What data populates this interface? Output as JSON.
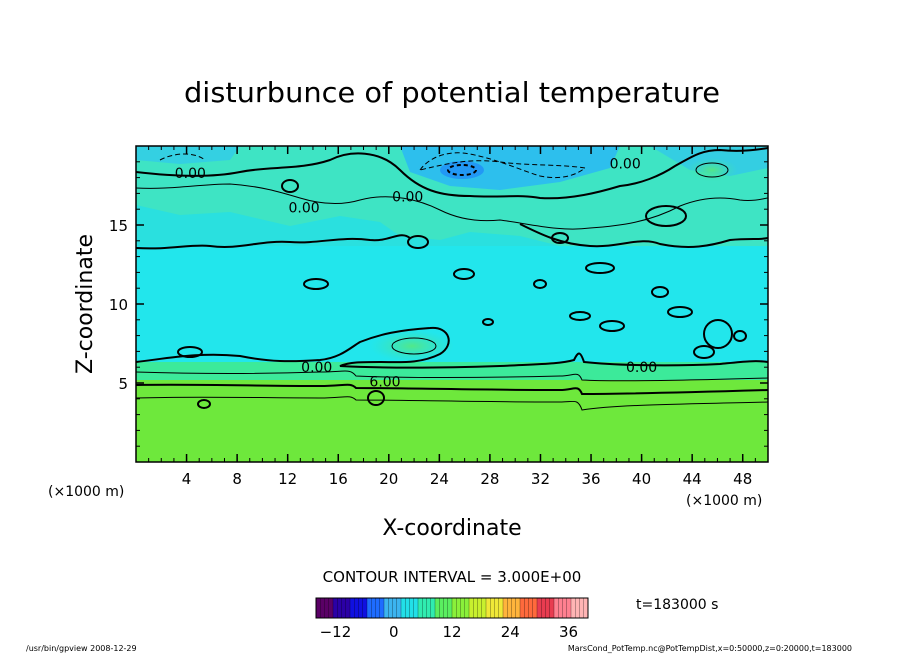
{
  "chart_data": {
    "type": "heatmap",
    "title": "disturbunce of potential temperature",
    "xlabel": "X-coordinate",
    "ylabel": "Z-coordinate",
    "x_unit_left": "(×1000 m)",
    "x_unit_right": "(×1000 m)",
    "xlim": [
      0,
      50
    ],
    "ylim": [
      0,
      20
    ],
    "x_ticks": [
      4,
      8,
      12,
      16,
      20,
      24,
      28,
      32,
      36,
      40,
      44,
      48
    ],
    "y_ticks": [
      5,
      10,
      15
    ],
    "contour_interval_text": "CONTOUR INTERVAL = 3.000E+00",
    "contour_labels": [
      {
        "text": "0.00",
        "x": 4.3,
        "z": 18.3
      },
      {
        "text": "0.00",
        "x": 13.3,
        "z": 16.1
      },
      {
        "text": "0.00",
        "x": 21.5,
        "z": 16.8
      },
      {
        "text": "0.00",
        "x": 38.7,
        "z": 18.9
      },
      {
        "text": "0.00",
        "x": 14.3,
        "z": 6.0
      },
      {
        "text": "0.00",
        "x": 40.0,
        "z": 6.0
      },
      {
        "text": "6.00",
        "x": 19.7,
        "z": 5.1
      }
    ],
    "field_description": [
      {
        "z_from": 0,
        "z_to": 4.5,
        "value": 8
      },
      {
        "z_from": 4.5,
        "z_to": 6.2,
        "value": 4
      },
      {
        "z_from": 6.2,
        "z_to": 16.0,
        "value": 0
      },
      {
        "z_from": 16.0,
        "z_to": 20,
        "value": 1
      }
    ],
    "colorbar": {
      "min": -16,
      "max": 40,
      "ticks": [
        -12,
        0,
        12,
        24,
        36
      ],
      "colors": [
        "#5a0066",
        "#2b00a6",
        "#1010e0",
        "#1e6cff",
        "#3cb4f0",
        "#22e0e8",
        "#30ecb0",
        "#5aee60",
        "#8af03a",
        "#c8f02e",
        "#f0e838",
        "#ffb43c",
        "#ff6a3c",
        "#e83c50",
        "#ff8090",
        "#ffb4b4"
      ]
    },
    "time_label": "t=183000 s",
    "footer_left": "/usr/bin/gpview   2008-12-29",
    "footer_right": "MarsCond_PotTemp.nc@PotTempDist,x=0:50000,z=0:20000,t=183000"
  }
}
